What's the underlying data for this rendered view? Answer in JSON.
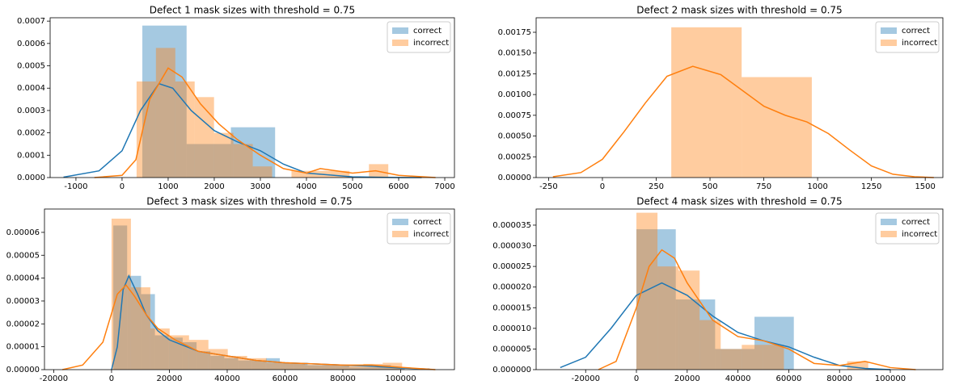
{
  "chart_data": [
    {
      "type": "histogram",
      "title": "Defect 1 mask sizes with threshold = 0.75",
      "legend": "upper right",
      "xlim": [
        -1560,
        7210
      ],
      "ylim": [
        0,
        0.000715
      ],
      "xticks": [
        -1000,
        0,
        1000,
        2000,
        3000,
        4000,
        5000,
        6000,
        7000
      ],
      "yticks": [
        {
          "value": 0,
          "label": "0.0000"
        },
        0.0001,
        0.0002,
        0.0003,
        0.0004,
        0.0005,
        0.0006,
        0.0007
      ],
      "series": [
        {
          "name": "correct",
          "color": "#1f77b4",
          "bins": [
            440,
            1400,
            2360,
            3320
          ],
          "values": [
            0.00068,
            0.00015,
            0.000225
          ],
          "kde_x": [
            -1270,
            -500,
            0,
            400,
            800,
            1100,
            1500,
            2000,
            2500,
            3000,
            3500,
            4000,
            5000,
            6000,
            6500
          ],
          "kde_y": [
            2e-06,
            3e-05,
            0.00012,
            0.0003,
            0.00042,
            0.0004,
            0.0003,
            0.00021,
            0.00016,
            0.00012,
            6e-05,
            2e-05,
            3e-06,
            0,
            0
          ]
        },
        {
          "name": "incorrect",
          "color": "#ff7f0e",
          "bins": [
            315,
            735,
            1155,
            1575,
            1995,
            2415,
            2835,
            3255,
            3675,
            4095,
            4515,
            4935,
            5355,
            5775
          ],
          "values": [
            0.00043,
            0.00058,
            0.00043,
            0.00036,
            0.0002,
            0.00015,
            5e-05,
            0,
            3e-05,
            3e-05,
            3e-05,
            0,
            6e-05
          ],
          "kde_x": [
            -600,
            0,
            300,
            600,
            1000,
            1300,
            1700,
            2100,
            2500,
            3000,
            3500,
            4000,
            4300,
            5000,
            5500,
            6000,
            6800
          ],
          "kde_y": [
            0,
            1e-05,
            8e-05,
            0.00035,
            0.00049,
            0.00045,
            0.00033,
            0.00024,
            0.00017,
            0.0001,
            4e-05,
            2e-05,
            4e-05,
            2e-05,
            3e-05,
            1e-05,
            0
          ]
        }
      ]
    },
    {
      "type": "histogram",
      "title": "Defect 2 mask sizes with threshold = 0.75",
      "legend": "upper right",
      "xlim": [
        -308,
        1582
      ],
      "ylim": [
        0,
        0.001925
      ],
      "xticks": [
        -250,
        0,
        250,
        500,
        750,
        1000,
        1250,
        1500
      ],
      "yticks": [
        {
          "value": 0,
          "label": "0.00000"
        },
        0.00025,
        {
          "value": 0.0005,
          "label": "0.00050"
        },
        0.00075,
        {
          "value": 0.001,
          "label": "0.00100"
        },
        0.00125,
        {
          "value": 0.0015,
          "label": "0.00150"
        },
        0.00175
      ],
      "series": [
        {
          "name": "correct",
          "color": "#1f77b4"
        },
        {
          "name": "incorrect",
          "color": "#ff7f0e",
          "bins": [
            320,
            647,
            973
          ],
          "values": [
            0.00181,
            0.00121
          ],
          "kde_x": [
            -230,
            -100,
            0,
            100,
            200,
            300,
            420,
            550,
            650,
            750,
            850,
            950,
            1050,
            1150,
            1250,
            1350,
            1450,
            1540
          ],
          "kde_y": [
            1e-05,
            6e-05,
            0.00022,
            0.00055,
            0.0009,
            0.00122,
            0.00134,
            0.00124,
            0.00105,
            0.00086,
            0.00075,
            0.00067,
            0.00053,
            0.00033,
            0.00014,
            4e-05,
            1e-05,
            0
          ]
        }
      ]
    },
    {
      "type": "histogram",
      "title": "Defect 3 mask sizes with threshold = 0.75",
      "legend": "upper right",
      "xlim": [
        -23200,
        118600
      ],
      "ylim": [
        0,
        7.02e-05
      ],
      "xticks": [
        -20000,
        0,
        20000,
        40000,
        60000,
        80000,
        100000
      ],
      "yticks": [
        {
          "value": 0,
          "label": "0.00000"
        },
        1e-05,
        2e-05,
        3e-05,
        4e-05,
        5e-05,
        6e-05
      ],
      "series": [
        {
          "name": "correct",
          "color": "#1f77b4",
          "bins": [
            600,
            5400,
            10200,
            15000,
            19800,
            24600,
            29400,
            34200,
            39000,
            43800,
            48600,
            53400,
            58200,
            63000,
            67800,
            72600,
            77400,
            82200,
            87000,
            91800,
            96600,
            101400
          ],
          "values": [
            6.3e-05,
            4.1e-05,
            3.3e-05,
            1.5e-05,
            1.4e-05,
            1.2e-05,
            8e-06,
            6e-06,
            5e-06,
            4e-06,
            4e-06,
            5e-06,
            3e-06,
            3e-06,
            2e-06,
            2e-06,
            2e-06,
            1e-06,
            1e-06,
            2e-06,
            1e-06
          ],
          "kde_x": [
            0,
            2000,
            4000,
            6000,
            9000,
            12000,
            16000,
            20000,
            30000,
            40000,
            50000,
            60000,
            70000,
            80000,
            90000,
            100000,
            110000
          ],
          "kde_y": [
            0,
            1e-05,
            3.5e-05,
            4.1e-05,
            3.3e-05,
            2.4e-05,
            1.7e-05,
            1.3e-05,
            8e-06,
            6e-06,
            4e-06,
            3e-06,
            2.5e-06,
            2e-06,
            1.5e-06,
            7e-07,
            2e-07
          ]
        },
        {
          "name": "incorrect",
          "color": "#ff7f0e",
          "bins": [
            0,
            6700,
            13400,
            20100,
            26800,
            33500,
            40200,
            46900,
            53600,
            60300,
            67000,
            73700,
            80400,
            87100,
            93800,
            100500
          ],
          "values": [
            6.6e-05,
            3.6e-05,
            1.8e-05,
            1.5e-05,
            1.3e-05,
            9e-06,
            6e-06,
            5e-06,
            3e-06,
            3e-06,
            2e-06,
            2e-06,
            2e-06,
            2.5e-06,
            3e-06
          ],
          "kde_x": [
            -17000,
            -10000,
            -3000,
            2000,
            5000,
            8000,
            12000,
            16000,
            22000,
            30000,
            40000,
            50000,
            60000,
            70000,
            80000,
            90000,
            100000,
            112000
          ],
          "kde_y": [
            0,
            2e-06,
            1.2e-05,
            3.3e-05,
            3.7e-05,
            3.2e-05,
            2.4e-05,
            1.8e-05,
            1.3e-05,
            8e-06,
            6e-06,
            4e-06,
            3e-06,
            2.5e-06,
            2e-06,
            2e-06,
            1e-06,
            0
          ]
        }
      ]
    },
    {
      "type": "histogram",
      "title": "Defect 4 mask sizes with threshold = 0.75",
      "legend": "upper right",
      "xlim": [
        -39500,
        120700
      ],
      "ylim": [
        0,
        3.89e-05
      ],
      "xticks": [
        -20000,
        0,
        20000,
        40000,
        60000,
        80000,
        100000
      ],
      "yticks": [
        {
          "value": 0,
          "label": "0.000000"
        },
        5e-06,
        {
          "value": 1e-05,
          "label": "0.000010"
        },
        1.5e-05,
        {
          "value": 2e-05,
          "label": "0.000020"
        },
        2.5e-05,
        {
          "value": 3e-05,
          "label": "0.000030"
        },
        3.5e-05
      ],
      "series": [
        {
          "name": "correct",
          "color": "#1f77b4",
          "bins": [
            0,
            15500,
            31000,
            46500,
            62000
          ],
          "values": [
            3.4e-05,
            1.7e-05,
            5e-06,
            1.28e-05
          ],
          "kde_x": [
            -30000,
            -20000,
            -10000,
            0,
            10000,
            20000,
            30000,
            40000,
            50000,
            60000,
            70000,
            80000,
            90000,
            100000
          ],
          "kde_y": [
            5e-07,
            3e-06,
            1e-05,
            1.8e-05,
            2.1e-05,
            1.8e-05,
            1.3e-05,
            9e-06,
            7e-06,
            5.5e-06,
            3e-06,
            1e-06,
            3e-07,
            0
          ]
        },
        {
          "name": "incorrect",
          "color": "#ff7f0e",
          "bins": [
            0,
            8300,
            16600,
            24900,
            33200,
            41500,
            49800,
            58100,
            66400,
            74700,
            83000,
            91300
          ],
          "values": [
            3.8e-05,
            2.5e-05,
            2.4e-05,
            1.2e-05,
            5e-06,
            6e-06,
            6e-06,
            0,
            0,
            0,
            2e-06
          ],
          "kde_x": [
            -15000,
            -8000,
            0,
            5000,
            10000,
            15000,
            20000,
            30000,
            40000,
            50000,
            60000,
            70000,
            80000,
            90000,
            100000,
            110000
          ],
          "kde_y": [
            0,
            2e-06,
            1.5e-05,
            2.5e-05,
            2.9e-05,
            2.7e-05,
            2.1e-05,
            1.2e-05,
            8e-06,
            7e-06,
            5e-06,
            1.5e-06,
            1e-06,
            2e-06,
            5e-07,
            0
          ]
        }
      ]
    }
  ]
}
